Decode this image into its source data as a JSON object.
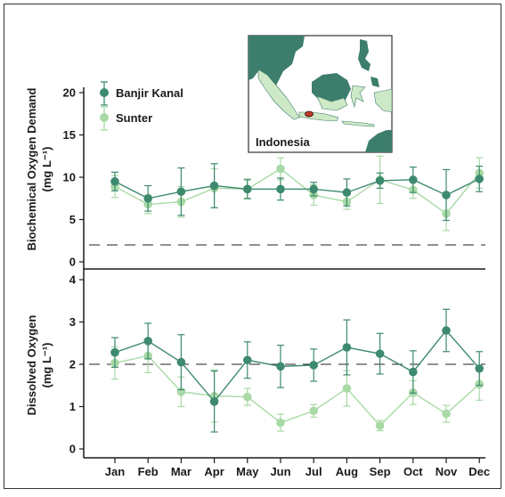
{
  "colors": {
    "banjir": "#3e8a6f",
    "sunter": "#a9d9a6",
    "axis": "#1a1a1a",
    "land": "#3d7d6c",
    "land_light": "#cde9c6",
    "site": "#c0392b"
  },
  "chart_data": [
    {
      "type": "line",
      "ylabel_line1": "Biochemical Oxygen Demand",
      "ylabel_line2": "(mg L⁻¹)",
      "categories": [
        "Jan",
        "Feb",
        "Mar",
        "Apr",
        "May",
        "Jun",
        "Jul",
        "Aug",
        "Sep",
        "Oct",
        "Nov",
        "Dec"
      ],
      "ylim": [
        0,
        21
      ],
      "yticks": [
        0,
        5,
        10,
        15,
        20
      ],
      "reference_line": 2,
      "legend": {
        "placement": "top-left",
        "entries": [
          "Banjir Kanal",
          "Sunter"
        ]
      },
      "series": [
        {
          "name": "Banjir Kanal",
          "values": [
            9.5,
            7.5,
            8.3,
            9.0,
            8.6,
            8.6,
            8.6,
            8.2,
            9.6,
            9.7,
            7.9,
            9.8
          ],
          "err": [
            1.1,
            1.5,
            2.8,
            2.6,
            1.1,
            1.3,
            0.8,
            1.6,
            0.9,
            1.5,
            3.0,
            1.5
          ]
        },
        {
          "name": "Sunter",
          "values": [
            8.9,
            6.8,
            7.1,
            8.7,
            8.6,
            11.0,
            7.9,
            7.1,
            9.7,
            8.5,
            5.7,
            10.5
          ],
          "err": [
            1.3,
            1.1,
            1.8,
            2.3,
            1.2,
            1.3,
            1.2,
            0.9,
            2.8,
            1.0,
            2.0,
            1.8
          ]
        }
      ]
    },
    {
      "type": "line",
      "ylabel_line1": "Dissolved Oxygen",
      "ylabel_line2": "(mg L⁻¹)",
      "categories": [
        "Jan",
        "Feb",
        "Mar",
        "Apr",
        "May",
        "Jun",
        "Jul",
        "Aug",
        "Sep",
        "Oct",
        "Nov",
        "Dec"
      ],
      "ylim": [
        0,
        4.2
      ],
      "yticks": [
        0,
        1,
        2,
        3,
        4
      ],
      "reference_line": 2,
      "series": [
        {
          "name": "Banjir Kanal",
          "values": [
            2.28,
            2.55,
            2.05,
            1.12,
            2.1,
            1.95,
            1.98,
            2.4,
            2.25,
            1.82,
            2.8,
            1.9
          ],
          "err": [
            0.35,
            0.42,
            0.65,
            0.72,
            0.43,
            0.5,
            0.38,
            0.65,
            0.48,
            0.5,
            0.5,
            0.4
          ]
        },
        {
          "name": "Sunter",
          "values": [
            2.03,
            2.2,
            1.35,
            1.25,
            1.23,
            0.62,
            0.9,
            1.43,
            0.55,
            1.33,
            0.83,
            1.53
          ],
          "err": [
            0.38,
            0.4,
            0.35,
            0.62,
            0.2,
            0.2,
            0.15,
            0.42,
            0.12,
            0.28,
            0.2,
            0.38
          ]
        }
      ]
    }
  ],
  "map": {
    "label": "Indonesia"
  }
}
